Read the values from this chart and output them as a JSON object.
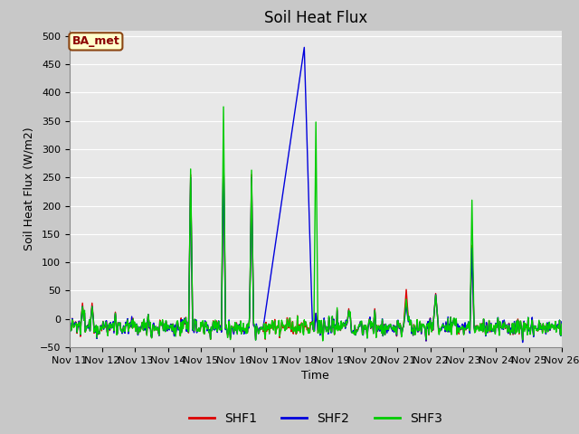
{
  "title": "Soil Heat Flux",
  "ylabel": "Soil Heat Flux (W/m2)",
  "xlabel": "Time",
  "ylim": [
    -50,
    510
  ],
  "yticks": [
    -50,
    0,
    50,
    100,
    150,
    200,
    250,
    300,
    350,
    400,
    450,
    500
  ],
  "xlim": [
    0,
    15
  ],
  "fig_bg_color": "#c8c8c8",
  "plot_bg_color": "#e8e8e8",
  "grid_color": "#ffffff",
  "legend_label": "BA_met",
  "series_colors": {
    "SHF1": "#dd0000",
    "SHF2": "#0000dd",
    "SHF3": "#00cc00"
  },
  "line_width": 1.0,
  "title_fontsize": 12,
  "label_fontsize": 9,
  "tick_fontsize": 8,
  "legend_fontsize": 10
}
